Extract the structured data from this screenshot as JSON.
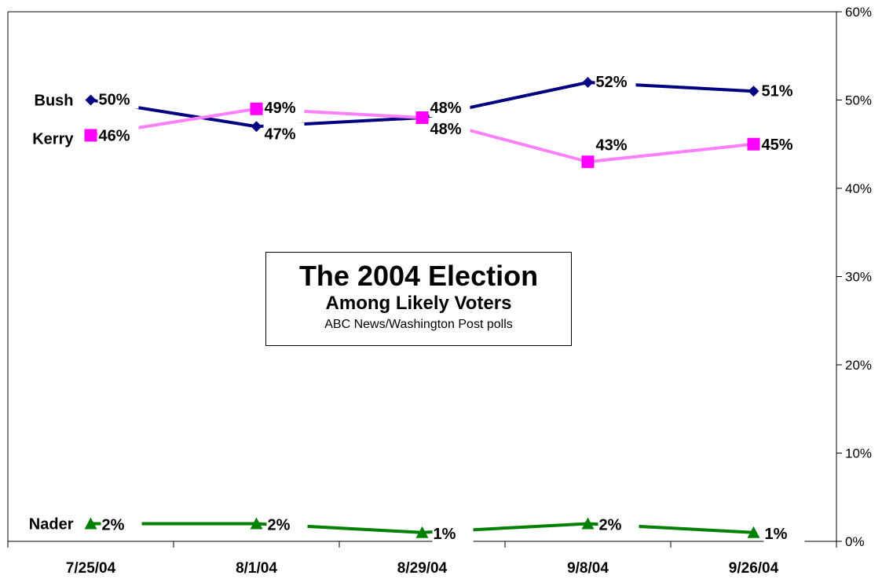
{
  "chart_data": {
    "type": "line",
    "title": "The 2004 Election",
    "subtitle": "Among Likely Voters",
    "source": "ABC News/Washington Post polls",
    "categories": [
      "7/25/04",
      "8/1/04",
      "8/29/04",
      "9/8/04",
      "9/26/04"
    ],
    "ylim": [
      0,
      60
    ],
    "y_ticks": [
      "0%",
      "10%",
      "20%",
      "30%",
      "40%",
      "50%",
      "60%"
    ],
    "y_axis_side": "right",
    "grid": false,
    "series": [
      {
        "name": "Bush",
        "color": "#000080",
        "marker": "diamond",
        "values": [
          50,
          47,
          48,
          52,
          51
        ],
        "labels": [
          "50%",
          "47%",
          "48%",
          "52%",
          "51%"
        ]
      },
      {
        "name": "Kerry",
        "color": "#ff80ff",
        "marker_color": "#ff00ff",
        "marker": "square",
        "values": [
          46,
          49,
          48,
          43,
          45
        ],
        "labels": [
          "46%",
          "49%",
          "48%",
          "43%",
          "45%"
        ]
      },
      {
        "name": "Nader",
        "color": "#008000",
        "marker": "triangle",
        "values": [
          2,
          2,
          1,
          2,
          1
        ],
        "labels": [
          "2%",
          "2%",
          "1%",
          "2%",
          "1%"
        ]
      }
    ]
  }
}
